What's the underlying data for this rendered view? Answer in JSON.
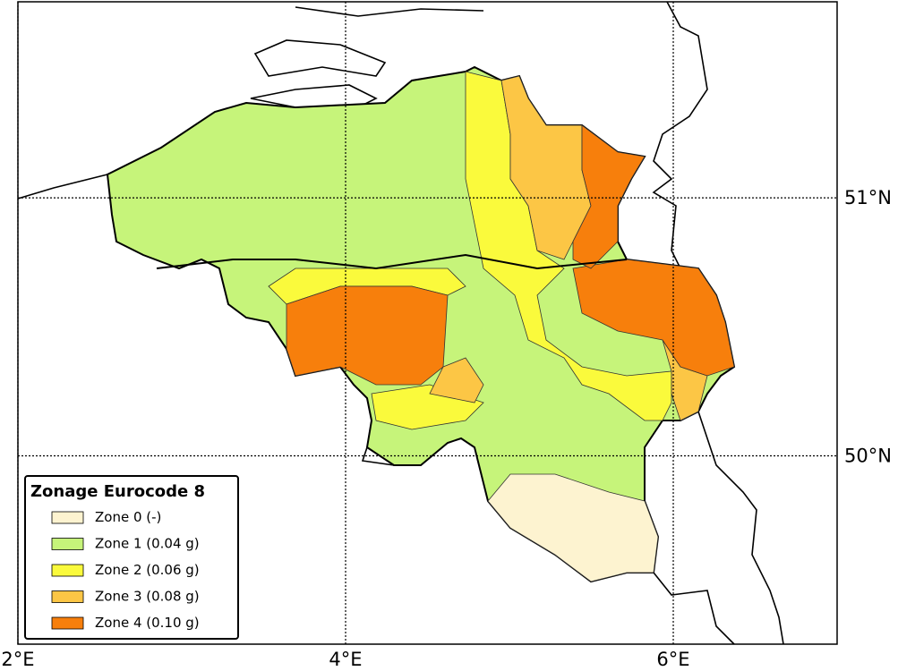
{
  "map": {
    "xlim": [
      2,
      7
    ],
    "ylim": [
      49.27,
      51.76
    ],
    "xticks": [
      {
        "value": 2,
        "label": "2°E"
      },
      {
        "value": 4,
        "label": "4°E"
      },
      {
        "value": 6,
        "label": "6°E"
      }
    ],
    "yticks": [
      {
        "value": 50,
        "label": "50°N"
      },
      {
        "value": 51,
        "label": "51°N"
      }
    ],
    "legend": {
      "title": "Zonage Eurocode 8",
      "items": [
        {
          "label": "Zone 0 (-)",
          "color": "#fdf3d0"
        },
        {
          "label": "Zone 1 (0.04 g)",
          "color": "#c6f47a"
        },
        {
          "label": "Zone 2 (0.06 g)",
          "color": "#fafa3c"
        },
        {
          "label": "Zone 3 (0.08 g)",
          "color": "#fcc645"
        },
        {
          "label": "Zone 4 (0.10 g)",
          "color": "#f77f0c"
        }
      ]
    }
  }
}
